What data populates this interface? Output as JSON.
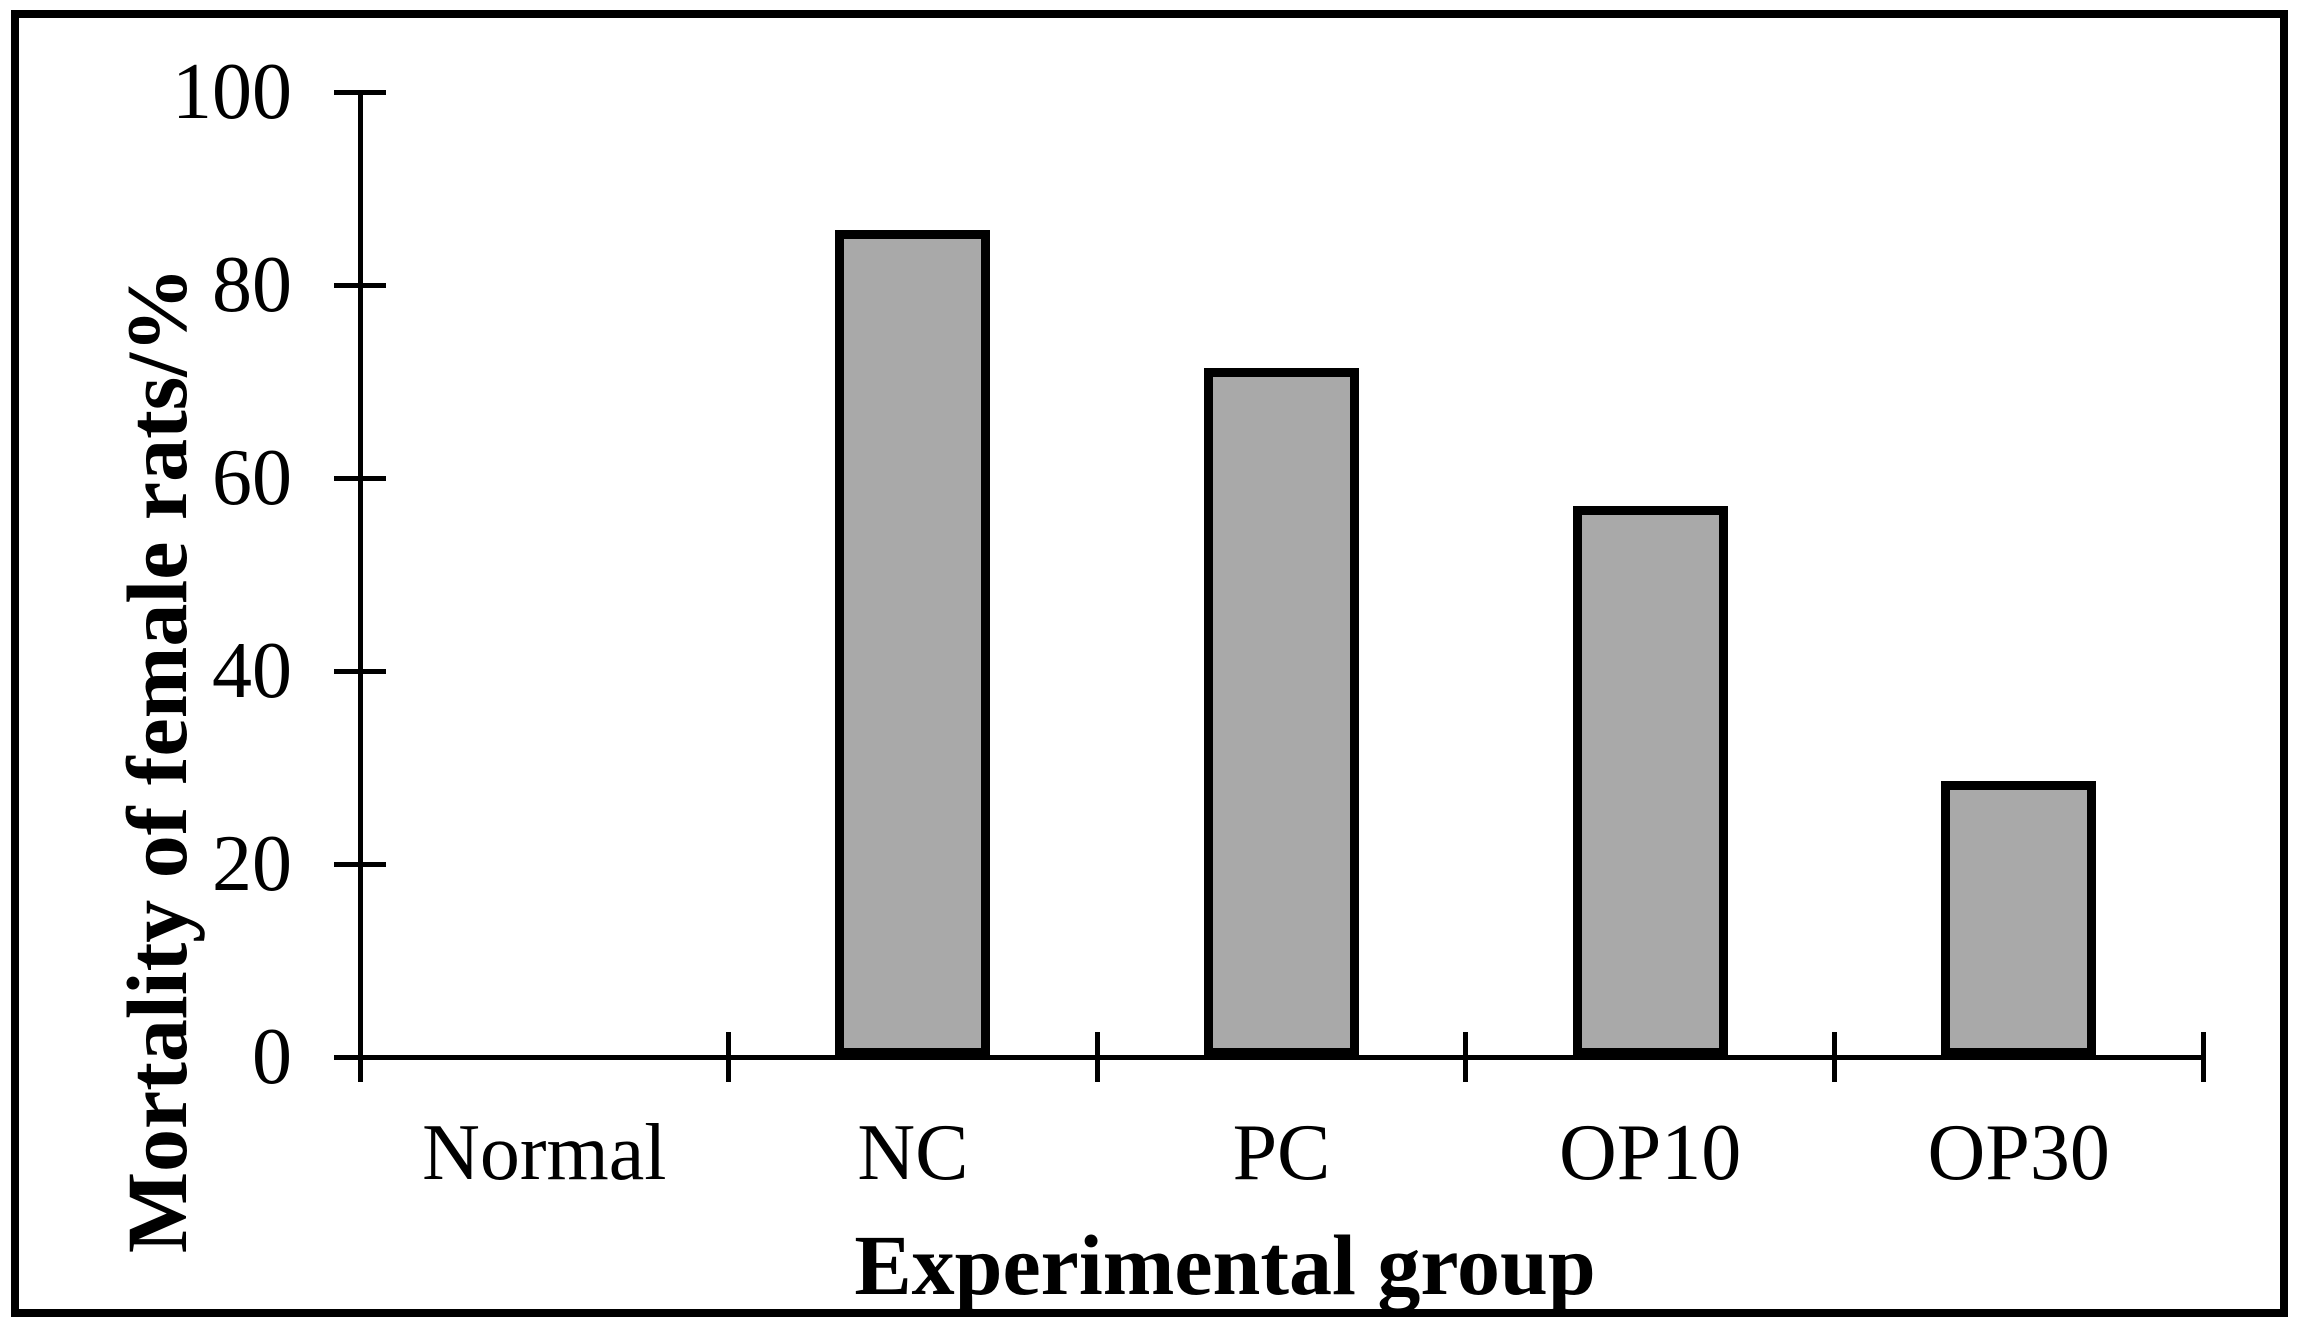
{
  "chart_data": {
    "type": "bar",
    "title": "",
    "xlabel": "Experimental group",
    "ylabel": "Mortality of female rats/%",
    "categories": [
      "Normal",
      "NC",
      "PC",
      "OP10",
      "OP30"
    ],
    "values": [
      0,
      85.7,
      71.4,
      57.1,
      28.6
    ],
    "ylim": [
      0,
      100
    ],
    "yticks": [
      0,
      20,
      40,
      60,
      80,
      100
    ],
    "grid": false,
    "legend": null,
    "bar_fill_color": "#a9a9a9",
    "bar_border_color": "#000000",
    "frame_color": "#000000"
  }
}
